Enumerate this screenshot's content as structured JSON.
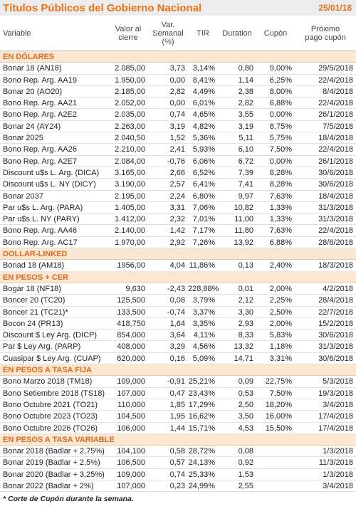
{
  "header": {
    "title": "Títulos Públicos del Gobierno Nacional",
    "date": "25/01/18"
  },
  "columns": [
    "Variable",
    "Valor al cierre",
    "Var. Semanal (%)",
    "TIR",
    "Duration",
    "Cupón",
    "Próximo pago cupón"
  ],
  "sections": [
    {
      "title": "EN DÓLARES",
      "rows": [
        [
          "Bonar 18 (AN18)",
          "2.085,00",
          "3,73",
          "3,14%",
          "0,80",
          "9,00%",
          "29/5/2018"
        ],
        [
          "Bono Rep. Arg. AA19",
          "1.950,00",
          "0,00",
          "8,41%",
          "1,14",
          "6,25%",
          "22/4/2018"
        ],
        [
          "Bonar 20 (AO20)",
          "2.185,00",
          "2,82",
          "4,49%",
          "2,38",
          "8,00%",
          "8/4/2018"
        ],
        [
          "Bono Rep. Arg. AA21",
          "2.052,00",
          "0,00",
          "6,01%",
          "2,82",
          "6,88%",
          "22/4/2018"
        ],
        [
          "Bono Rep. Arg. A2E2",
          "2.035,00",
          "0,74",
          "4,65%",
          "3,55",
          "0,00%",
          "26/1/2018"
        ],
        [
          "Bonar 24 (AY24)",
          "2.263,00",
          "3,19",
          "4,82%",
          "3,19",
          "8,75%",
          "7/5/2018"
        ],
        [
          "Bonar 2025",
          "2.040,50",
          "1,52",
          "5,36%",
          "5,11",
          "5,75%",
          "18/4/2018"
        ],
        [
          "Bono Rep. Arg. AA26",
          "2.210,00",
          "2,41",
          "5,93%",
          "6,10",
          "7,50%",
          "22/4/2018"
        ],
        [
          "Bono Rep. Arg. A2E7",
          "2.084,00",
          "-0,76",
          "6,06%",
          "6,72",
          "0,00%",
          "26/1/2018"
        ],
        [
          "Discount u$s L. Arg. (DICA)",
          "3.165,00",
          "2,66",
          "6,52%",
          "7,39",
          "8,28%",
          "30/6/2018"
        ],
        [
          "Discount u$s L. NY (DICY)",
          "3.190,00",
          "2,57",
          "6,41%",
          "7,41",
          "8,28%",
          "30/6/2018"
        ],
        [
          "Bonar 2037",
          "2.195,00",
          "2,24",
          "6,80%",
          "9,97",
          "7,63%",
          "18/4/2018"
        ],
        [
          "Par u$s L. Arg. (PARA)",
          "1.405,00",
          "3,31",
          "7,06%",
          "10,82",
          "1,33%",
          "31/3/2018"
        ],
        [
          "Par u$s L. NY (PARY)",
          "1.412,00",
          "2,32",
          "7,01%",
          "11,00",
          "1,33%",
          "31/3/2018"
        ],
        [
          "Bono Rep. Arg. AA46",
          "2.140,00",
          "1,42",
          "7,17%",
          "11,80",
          "7,63%",
          "22/4/2018"
        ],
        [
          "Bono Rep. Arg. AC17",
          "1.970,00",
          "2,92",
          "7,26%",
          "13,92",
          "6,88%",
          "28/6/2018"
        ]
      ]
    },
    {
      "title": "DOLLAR-LINKED",
      "rows": [
        [
          "Bonad 18 (AM18)",
          "1956,00",
          "4,04",
          "11,86%",
          "0,13",
          "2,40%",
          "18/3/2018"
        ]
      ]
    },
    {
      "title": "EN PESOS + CER",
      "rows": [
        [
          "Bogar 18 (NF18)",
          "9,630",
          "-2,43",
          "228,88%",
          "0,01",
          "2,00%",
          "4/2/2018"
        ],
        [
          "Boncer 20 (TC20)",
          "125,500",
          "0,08",
          "3,79%",
          "2,12",
          "2,25%",
          "28/4/2018"
        ],
        [
          "Boncer 21 (TC21)*",
          "133,500",
          "-0,74",
          "3,37%",
          "3,30",
          "2,50%",
          "22/7/2018"
        ],
        [
          "Bocon 24 (PR13)",
          "418,750",
          "1,64",
          "3,35%",
          "2,93",
          "2,00%",
          "15/2/2018"
        ],
        [
          "Discount $ Ley Arg. (DICP)",
          "854,000",
          "3,64",
          "4,11%",
          "8,33",
          "5,83%",
          "30/6/2018"
        ],
        [
          "Par $ Ley Arg. (PARP)",
          "408,000",
          "3,29",
          "4,56%",
          "13,32",
          "1,18%",
          "31/3/2018"
        ],
        [
          "Cuasipar $ Ley Arg. (CUAP)",
          "620,000",
          "0,16",
          "5,09%",
          "14,71",
          "3,31%",
          "30/6/2018"
        ]
      ]
    },
    {
      "title": "EN PESOS A TASA FIJA",
      "rows": [
        [
          "Bono Marzo 2018 (TM18)",
          "109,000",
          "-0,91",
          "25,21%",
          "0,09",
          "22,75%",
          "5/3/2018"
        ],
        [
          "Bono Setiembre 2018 (TS18)",
          "107,000",
          "0,47",
          "23,43%",
          "0,53",
          "7,50%",
          "19/3/2018"
        ],
        [
          "Bono Octubre 2021 (TO21)",
          "110,000",
          "1,85",
          "17,29%",
          "2,50",
          "18,20%",
          "3/4/2018"
        ],
        [
          "Bono Octubre 2023 (TO23)",
          "104,500",
          "1,95",
          "16,62%",
          "3,50",
          "16,00%",
          "17/4/2018"
        ],
        [
          "Bono Octubre 2026 (TO26)",
          "106,000",
          "1,44",
          "15,71%",
          "4,53",
          "15,50%",
          "17/4/2018"
        ]
      ]
    },
    {
      "title": "EN PESOS A TASA VARIABLE",
      "rows": [
        [
          "Bonar 2018 (Badlar + 2,75%)",
          "104,100",
          "0,58",
          "28,72%",
          "0,08",
          null,
          "1/3/2018"
        ],
        [
          "Bonar 2019 (Badlar + 2,5%)",
          "106,500",
          "0,57",
          "24,13%",
          "0,92",
          null,
          "11/3/2018"
        ],
        [
          "Bonar 2020 (Badlar + 3,25%)",
          "109,000",
          "0,74",
          "25,33%",
          "1,53",
          null,
          "1/3/2018"
        ],
        [
          "Bonar 2022 (Badlar + 2%)",
          "107,000",
          "0,23",
          "24,99%",
          "2,55",
          null,
          "3/4/2018"
        ]
      ]
    }
  ],
  "footnote": "* Corte de Cupón durante la semana."
}
